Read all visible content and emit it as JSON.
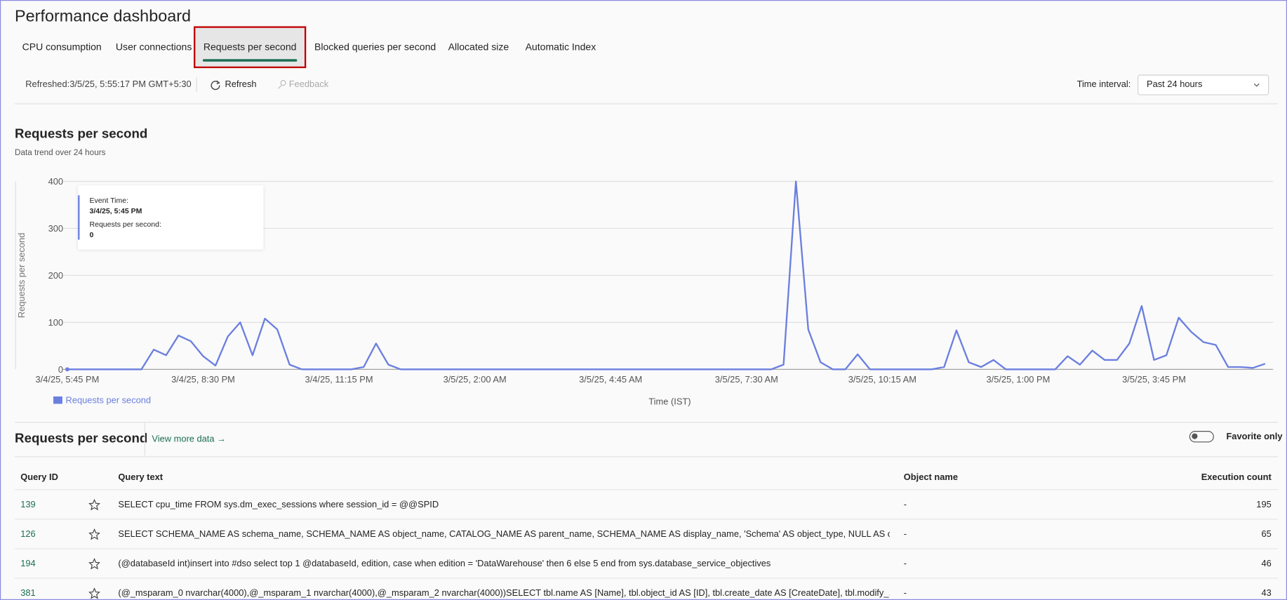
{
  "header": {
    "title": "Performance dashboard"
  },
  "tabs": [
    {
      "label": "CPU consumption",
      "selected": false
    },
    {
      "label": "User connections",
      "selected": false
    },
    {
      "label": "Requests per second",
      "selected": true
    },
    {
      "label": "Blocked queries per second",
      "selected": false
    },
    {
      "label": "Allocated size",
      "selected": false
    },
    {
      "label": "Automatic Index",
      "selected": false
    }
  ],
  "toolbar": {
    "refreshed": "Refreshed:3/5/25, 5:55:17 PM GMT+5:30",
    "refresh": "Refresh",
    "feedback": "Feedback",
    "time_interval_label": "Time interval:",
    "time_interval": "Past 24 hours"
  },
  "chart_data": {
    "type": "line",
    "title": "Requests per second",
    "subtitle": "Data trend over 24 hours",
    "y_label": "Requests per second",
    "x_label": "Time (IST)",
    "categories": [
      "3/4/25, 5:45 PM",
      null,
      null,
      null,
      null,
      null,
      null,
      null,
      null,
      null,
      null,
      "3/4/25, 8:30 PM",
      null,
      null,
      null,
      null,
      null,
      null,
      null,
      null,
      null,
      null,
      "3/4/25, 11:15 PM",
      null,
      null,
      null,
      null,
      null,
      null,
      null,
      null,
      null,
      null,
      "3/5/25, 2:00 AM",
      null,
      null,
      null,
      null,
      null,
      null,
      null,
      null,
      null,
      null,
      "3/5/25, 4:45 AM",
      null,
      null,
      null,
      null,
      null,
      null,
      null,
      null,
      null,
      null,
      "3/5/25, 7:30 AM",
      null,
      null,
      null,
      null,
      null,
      null,
      null,
      null,
      null,
      null,
      "3/5/25, 10:15 AM",
      null,
      null,
      null,
      null,
      null,
      null,
      null,
      null,
      null,
      null,
      "3/5/25, 1:00 PM",
      null,
      null,
      null,
      null,
      null,
      null,
      null,
      null,
      null,
      null,
      "3/5/25, 3:45 PM",
      null,
      null,
      null,
      null,
      null,
      null,
      null,
      null,
      null
    ],
    "series": [
      {
        "name": "Requests per second",
        "color": "#6b7fe0",
        "values": [
          0,
          0,
          0,
          0,
          0,
          0,
          0,
          42,
          30,
          72,
          60,
          28,
          8,
          70,
          100,
          30,
          108,
          85,
          10,
          0,
          0,
          0,
          0,
          0,
          5,
          55,
          10,
          0,
          0,
          0,
          0,
          0,
          0,
          0,
          0,
          0,
          0,
          0,
          0,
          0,
          0,
          0,
          0,
          0,
          0,
          0,
          0,
          0,
          0,
          0,
          0,
          0,
          0,
          0,
          0,
          0,
          0,
          0,
          10,
          400,
          85,
          15,
          0,
          0,
          32,
          0,
          0,
          0,
          0,
          0,
          0,
          5,
          83,
          15,
          5,
          20,
          0,
          0,
          0,
          0,
          0,
          28,
          10,
          40,
          20,
          20,
          55,
          135,
          20,
          30,
          110,
          80,
          58,
          52,
          5,
          5,
          3,
          12
        ]
      }
    ],
    "ylim": [
      0,
      400
    ],
    "yticks": [
      0,
      100,
      200,
      300,
      400
    ],
    "grid": true,
    "legend": "bottom-left",
    "tooltip": {
      "time_label": "Event Time:",
      "time": "3/4/25, 5:45 PM",
      "value_label": "Requests per second:",
      "value": "0"
    }
  },
  "table_section": {
    "title": "Requests per second",
    "view_more": "View more data",
    "favorite_only": "Favorite only"
  },
  "table": {
    "columns": [
      "Query ID",
      "Query text",
      "Object name",
      "Execution count"
    ],
    "rows": [
      [
        "139",
        "SELECT cpu_time FROM sys.dm_exec_sessions where session_id = @@SPID",
        "-",
        195
      ],
      [
        "126",
        "SELECT SCHEMA_NAME AS schema_name, SCHEMA_NAME AS object_name, CATALOG_NAME AS parent_name, SCHEMA_NAME AS display_name, 'Schema' AS object_type, NULL AS obje...",
        "-",
        65
      ],
      [
        "194",
        "(@databaseId int)insert into #dso select top 1 @databaseId, edition, case when edition = 'DataWarehouse' then 6 else 5 end from sys.database_service_objectives",
        "-",
        46
      ],
      [
        "381",
        "(@_msparam_0 nvarchar(4000),@_msparam_1 nvarchar(4000),@_msparam_2 nvarchar(4000))SELECT tbl.name AS [Name], tbl.object_id AS [ID], tbl.create_date AS [CreateDate], tbl.modify_...",
        "-",
        43
      ]
    ]
  }
}
